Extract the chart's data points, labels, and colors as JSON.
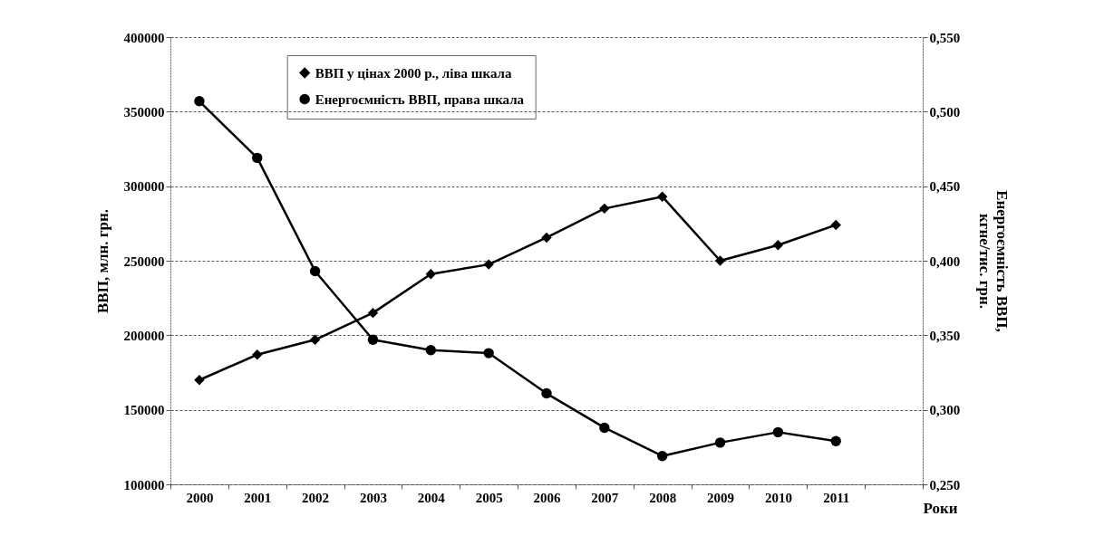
{
  "chart_data": {
    "type": "line",
    "xlabel": "Роки",
    "ylabel": "ВВП, млн. грн.",
    "y2label": "Енергоємність ВВП, кгне/тис. грн.",
    "categories": [
      "2000",
      "2001",
      "2002",
      "2003",
      "2004",
      "2005",
      "2006",
      "2007",
      "2008",
      "2009",
      "2010",
      "2011",
      null
    ],
    "series": [
      {
        "name": "ВВП у цінах 2000 р., ліва шкала",
        "color": "#000000",
        "marker": "diamond",
        "values": [
          170000,
          187000,
          197000,
          215000,
          241000,
          247500,
          265500,
          285000,
          293000,
          250000,
          260500,
          274000,
          null
        ]
      },
      {
        "name": "Енергоємність ВВП, права шкала",
        "color": "#000000",
        "marker": "circle",
        "axis": "y2",
        "values": [
          0.507,
          0.469,
          0.393,
          0.347,
          0.34,
          0.338,
          0.311,
          0.288,
          0.269,
          0.278,
          0.285,
          0.279,
          null
        ]
      }
    ],
    "ylim": [
      100000,
      400000
    ],
    "yticks": [
      100000,
      150000,
      200000,
      250000,
      300000,
      350000,
      400000
    ],
    "y2lim": [
      0.25,
      0.55
    ],
    "y2ticks": [
      {
        "value": 0.25,
        "label": "0,250"
      },
      {
        "value": 0.3,
        "label": "0,300"
      },
      {
        "value": 0.35,
        "label": "0,350"
      },
      {
        "value": 0.4,
        "label": "0,400"
      },
      {
        "value": 0.45,
        "label": "0,450"
      },
      {
        "value": 0.5,
        "label": "0,500"
      },
      {
        "value": 0.55,
        "label": "0,550"
      }
    ],
    "grid": "y",
    "legend": "top",
    "line_style": "solid"
  }
}
